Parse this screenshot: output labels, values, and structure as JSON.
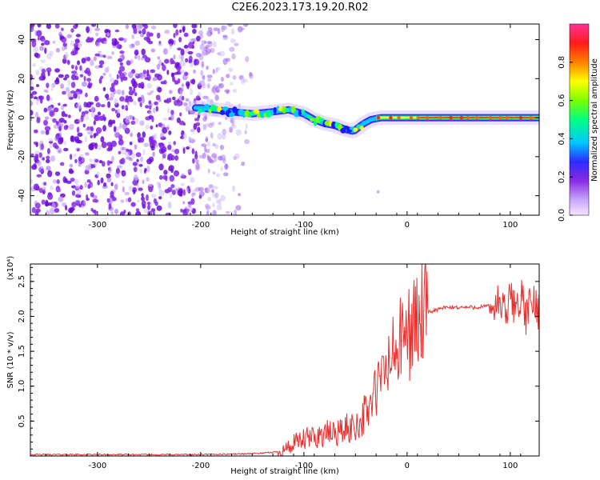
{
  "title": "C2E6.2023.173.19.20.R02",
  "chart_data": [
    {
      "type": "heatmap",
      "title": "C2E6.2023.173.19.20.R02",
      "xlabel": "Height of straight line (km)",
      "ylabel": "Frequency (Hz)",
      "xlim": [
        -365,
        128
      ],
      "ylim": [
        -50,
        48
      ],
      "x_ticks": [
        -300,
        -200,
        -100,
        0,
        100
      ],
      "y_ticks": [
        -40,
        -20,
        0,
        20,
        40
      ],
      "grid": false,
      "colorbar": {
        "label": "Normalized spectral amplitude",
        "range": [
          0.0,
          1.0
        ],
        "ticks": [
          0.0,
          0.2,
          0.4,
          0.6,
          0.8
        ],
        "tick_labels": [
          "0.0",
          "0.2",
          "0.4",
          "0.6",
          "0.8"
        ],
        "colormap": "rainbow (purple-blue-cyan-green-yellow-red-magenta)"
      },
      "ridge": {
        "x": [
          -200,
          -185,
          -170,
          -150,
          -130,
          -115,
          -100,
          -90,
          -80,
          -70,
          -60,
          -52,
          -47,
          -42,
          -35,
          -25,
          -10,
          0,
          20,
          50,
          80,
          100,
          128
        ],
        "y": [
          5,
          4,
          3,
          2,
          3,
          4,
          2,
          -1,
          -3,
          -4,
          -6,
          -7,
          -5,
          -3,
          -1,
          0,
          0,
          0,
          0,
          0,
          0,
          0,
          0
        ]
      },
      "noise_region_x": [
        -365,
        -150
      ]
    },
    {
      "type": "line",
      "xlabel": "Height of straight line (km)",
      "ylabel": "SNR (10 * v/v)",
      "y_multiplier": "(x10⁴)",
      "xlim": [
        -365,
        128
      ],
      "ylim": [
        0,
        2.75
      ],
      "x_ticks": [
        -300,
        -200,
        -100,
        0,
        100
      ],
      "y_ticks": [
        0.5,
        1.0,
        1.5,
        2.0,
        2.5
      ],
      "y_tick_labels": [
        "0.5",
        "1.0",
        "1.5",
        "2.0",
        "2.5"
      ],
      "grid": false,
      "series": [
        {
          "color": "#e8302f",
          "x": [
            -365,
            -300,
            -250,
            -200,
            -160,
            -140,
            -125,
            -115,
            -105,
            -95,
            -85,
            -75,
            -65,
            -55,
            -45,
            -35,
            -25,
            -15,
            -5,
            5,
            15,
            25,
            35,
            45,
            55,
            65,
            75,
            85,
            90,
            95,
            100,
            105,
            110,
            115,
            120,
            128
          ],
          "y": [
            0.02,
            0.02,
            0.02,
            0.02,
            0.03,
            0.04,
            0.06,
            0.12,
            0.2,
            0.25,
            0.3,
            0.32,
            0.35,
            0.4,
            0.5,
            0.75,
            1.1,
            1.4,
            1.65,
            1.85,
            2.0,
            2.08,
            2.12,
            2.13,
            2.13,
            2.13,
            2.14,
            2.15,
            2.2,
            2.0,
            2.25,
            2.15,
            2.3,
            2.0,
            2.2,
            2.1
          ]
        }
      ]
    }
  ]
}
